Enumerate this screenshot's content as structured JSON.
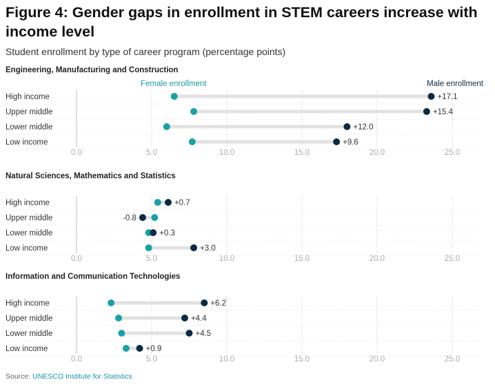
{
  "title": "Figure 4: Gender gaps in enrollment in STEM careers increase with income level",
  "subtitle": "Student enrollment by type of career program (percentage points)",
  "source": {
    "label": "Source:",
    "text": "UNESCO Institute for Statistics"
  },
  "colors": {
    "female": "#17a2a6",
    "male": "#0c2a44",
    "bar": "#e2e2e2",
    "grid": "#cfcfcf",
    "tick": "#aaaaaa",
    "female_label": "#1a9aa0"
  },
  "chart_data": [
    {
      "type": "dumbbell",
      "title": "Engineering, Manufacturing and Construction",
      "categories": [
        "High income",
        "Upper middle",
        "Lower middle",
        "Low income"
      ],
      "series": [
        {
          "name": "Female enrollment",
          "values": [
            6.5,
            7.8,
            6.0,
            7.7
          ]
        },
        {
          "name": "Male enrollment",
          "values": [
            23.6,
            23.3,
            18.0,
            17.3
          ]
        }
      ],
      "gap_labels": [
        "+17.1",
        "+15.4",
        "+12.0",
        "+9.6"
      ],
      "xlim": [
        0,
        25
      ],
      "xticks": [
        "0.0",
        "5.0",
        "10.0",
        "15.0",
        "20.0",
        "25.0"
      ]
    },
    {
      "type": "dumbbell",
      "title": "Natural Sciences, Mathematics and Statistics",
      "categories": [
        "High income",
        "Upper middle",
        "Lower middle",
        "Low income"
      ],
      "series": [
        {
          "name": "Female enrollment",
          "values": [
            5.4,
            5.2,
            4.8,
            4.8
          ]
        },
        {
          "name": "Male enrollment",
          "values": [
            6.1,
            4.4,
            5.1,
            7.8
          ]
        }
      ],
      "gap_labels": [
        "+0.7",
        "-0.8",
        "+0.3",
        "+3.0"
      ],
      "xlim": [
        0,
        25
      ],
      "xticks": [
        "0.0",
        "5.0",
        "10.0",
        "15.0",
        "20.0",
        "25.0"
      ]
    },
    {
      "type": "dumbbell",
      "title": "Information and Communication Technologies",
      "categories": [
        "High income",
        "Upper middle",
        "Lower middle",
        "Low income"
      ],
      "series": [
        {
          "name": "Female enrollment",
          "values": [
            2.3,
            2.8,
            3.0,
            3.3
          ]
        },
        {
          "name": "Male enrollment",
          "values": [
            8.5,
            7.2,
            7.5,
            4.2
          ]
        }
      ],
      "gap_labels": [
        "+6.2",
        "+4.4",
        "+4.5",
        "+0.9"
      ],
      "xlim": [
        0,
        25
      ],
      "xticks": [
        "0.0",
        "5.0",
        "10.0",
        "15.0",
        "20.0",
        "25.0"
      ]
    }
  ]
}
